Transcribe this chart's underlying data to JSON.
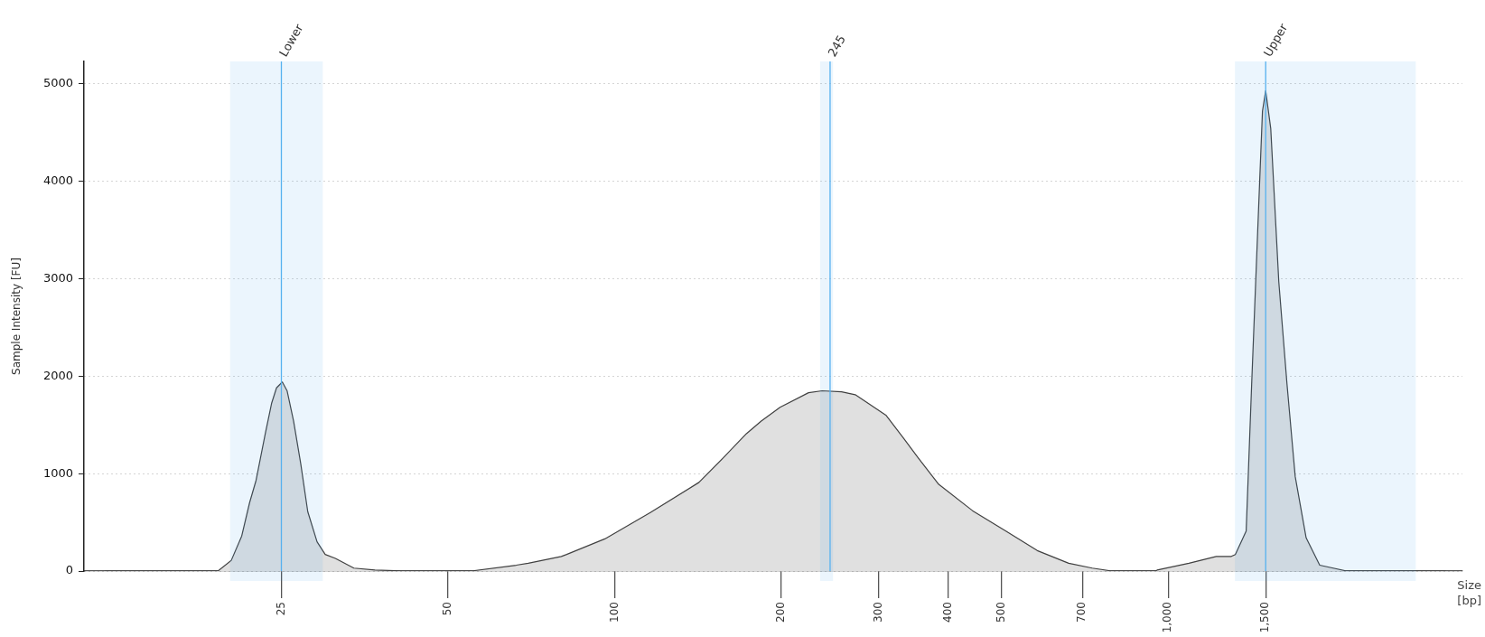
{
  "chart_data": {
    "type": "area",
    "xlabel": "Size [bp]",
    "ylabel": "Sample Intensity [FU]",
    "log": "x",
    "grid": "y",
    "legend": false,
    "xlim": [
      11,
      3400
    ],
    "ylim": [
      0,
      5230
    ],
    "xticks": [
      25,
      50,
      100,
      200,
      300,
      400,
      500,
      700,
      {
        "value": 1000,
        "label": "1,000"
      },
      {
        "value": 1500,
        "label": "1,500"
      }
    ],
    "yticks": [
      0,
      1000,
      2000,
      3000,
      4000,
      5000
    ],
    "series": [
      {
        "color": "#e0e0e0",
        "x": [
          12,
          17.4,
          19.2,
          20.3,
          21.2,
          21.9,
          22.5,
          23.4,
          24,
          24.5,
          25.1,
          25.6,
          26.3,
          27.1,
          27.9,
          29,
          30,
          31.3,
          33.8,
          36.9,
          42.4,
          55,
          66.4,
          69.8,
          80.1,
          81.9,
          96,
          116,
          142,
          157,
          173,
          184,
          199,
          224,
          237,
          257,
          272,
          309,
          332,
          358,
          385,
          443,
          509,
          580,
          661,
          729,
          792,
          947,
          955,
          1090,
          1221,
          1300,
          1322,
          1383,
          1415,
          1447,
          1480,
          1500,
          1532,
          1584,
          1639,
          1696,
          1775,
          1878,
          2103,
          3172
        ],
        "values": [
          0,
          0,
          0,
          110,
          360,
          700,
          930,
          1420,
          1720,
          1880,
          1940,
          1850,
          1540,
          1100,
          610,
          300,
          170,
          130,
          30,
          10,
          0,
          0,
          60,
          80,
          150,
          170,
          330,
          600,
          910,
          1160,
          1410,
          1540,
          1680,
          1830,
          1850,
          1840,
          1810,
          1600,
          1370,
          1120,
          890,
          620,
          410,
          210,
          80,
          30,
          0,
          0,
          10,
          80,
          150,
          150,
          170,
          410,
          1920,
          3320,
          4720,
          4930,
          4540,
          2970,
          1920,
          970,
          340,
          60,
          0,
          0
        ]
      }
    ],
    "ref_lines": [
      {
        "axis": "x",
        "value": 25,
        "label": "Lower",
        "color": "#5ab4f0"
      },
      {
        "axis": "x",
        "value": 245,
        "label": "245",
        "color": "#5ab4f0"
      },
      {
        "axis": "x",
        "value": 1500,
        "label": "Upper",
        "color": "#5ab4f0"
      }
    ],
    "bands": [
      {
        "axis": "x",
        "from": 20.2,
        "to": 29.7,
        "color": "#3a9ff0"
      },
      {
        "axis": "x",
        "from": 235,
        "to": 248,
        "color": "#3a9ff0"
      },
      {
        "axis": "x",
        "from": 1320,
        "to": 2800,
        "color": "#3a9ff0"
      }
    ]
  }
}
